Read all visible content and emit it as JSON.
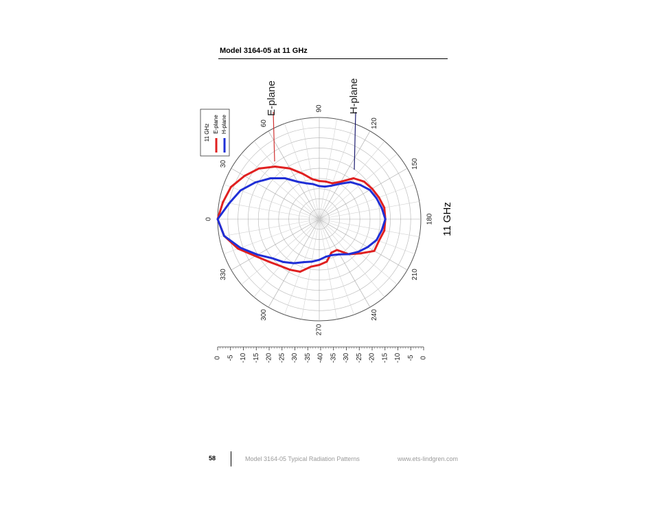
{
  "header": {
    "title": "Model 3164-05 at 11 GHz"
  },
  "footer": {
    "page_number": "58",
    "document_title": "Model 3164-05 Typical Radiation Patterns",
    "website": "www.ets-lindgren.com"
  },
  "chart_data": {
    "type": "polar",
    "title": "11 GHz",
    "angle_unit": "degrees",
    "angle_ticks": [
      "0",
      "30",
      "60",
      "90",
      "120",
      "150",
      "180",
      "210",
      "240",
      "270",
      "300",
      "330"
    ],
    "radial_unit": "dB",
    "radial_range": [
      -40,
      0
    ],
    "radial_ticks": [
      "0",
      "-5",
      "-10",
      "-15",
      "-20",
      "-25",
      "-30",
      "-35",
      "-40",
      "-35",
      "-30",
      "-25",
      "-20",
      "-15",
      "-10",
      "-5",
      "0"
    ],
    "grid": true,
    "legend": {
      "position": "top-left",
      "title": "11 GHz",
      "entries": [
        {
          "name": "E-plane",
          "color": "#e02020"
        },
        {
          "name": "H-plane",
          "color": "#1f2fd6"
        }
      ]
    },
    "annotations": [
      {
        "text": "E-plane",
        "series": "E-plane"
      },
      {
        "text": "H-plane",
        "series": "H-plane"
      }
    ],
    "series": [
      {
        "name": "E-plane",
        "color": "#e02020",
        "angles": [
          0,
          10,
          20,
          30,
          40,
          50,
          60,
          70,
          80,
          90,
          100,
          110,
          120,
          130,
          140,
          150,
          160,
          170,
          180,
          190,
          200,
          210,
          220,
          230,
          240,
          250,
          260,
          270,
          280,
          290,
          300,
          310,
          320,
          330,
          340,
          350
        ],
        "values": [
          0,
          -1.5,
          -3,
          -6,
          -9,
          -13,
          -17,
          -21,
          -24,
          -25,
          -25,
          -25,
          -23,
          -19,
          -17,
          -16,
          -15,
          -14,
          -14,
          -14,
          -15,
          -15,
          -19,
          -22,
          -26,
          -26,
          -23,
          -22,
          -21,
          -18,
          -17,
          -16,
          -14,
          -11,
          -6,
          -2
        ]
      },
      {
        "name": "H-plane",
        "color": "#1f2fd6",
        "angles": [
          0,
          10,
          20,
          30,
          40,
          50,
          60,
          70,
          80,
          90,
          100,
          110,
          120,
          130,
          140,
          150,
          160,
          170,
          180,
          190,
          200,
          210,
          220,
          230,
          240,
          250,
          260,
          270,
          280,
          290,
          300,
          310,
          320,
          330,
          340,
          350
        ],
        "values": [
          0,
          -4,
          -7,
          -11,
          -15,
          -19,
          -23,
          -25,
          -26,
          -27,
          -27,
          -26,
          -24,
          -21,
          -19,
          -17,
          -16,
          -15,
          -14,
          -15,
          -16,
          -18,
          -20,
          -22,
          -24,
          -25,
          -25,
          -24,
          -23,
          -22,
          -20,
          -18,
          -16,
          -12,
          -7,
          -2
        ]
      }
    ]
  }
}
